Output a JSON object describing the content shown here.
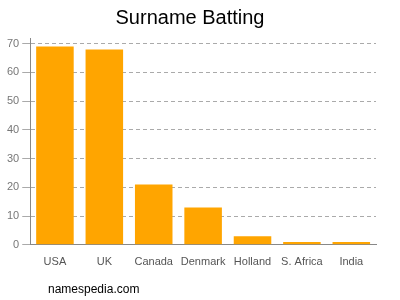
{
  "chart_data": {
    "type": "bar",
    "title": "Surname Batting",
    "categories": [
      "USA",
      "UK",
      "Canada",
      "Denmark",
      "Holland",
      "S. Africa",
      "India"
    ],
    "values": [
      69,
      68,
      21,
      13,
      3,
      1,
      1
    ],
    "color": "#ffa500",
    "ylim": [
      0,
      72
    ],
    "yticks": [
      0,
      10,
      20,
      30,
      40,
      50,
      60,
      70
    ],
    "grid": true,
    "annotations": [
      "namespedia.com"
    ]
  }
}
